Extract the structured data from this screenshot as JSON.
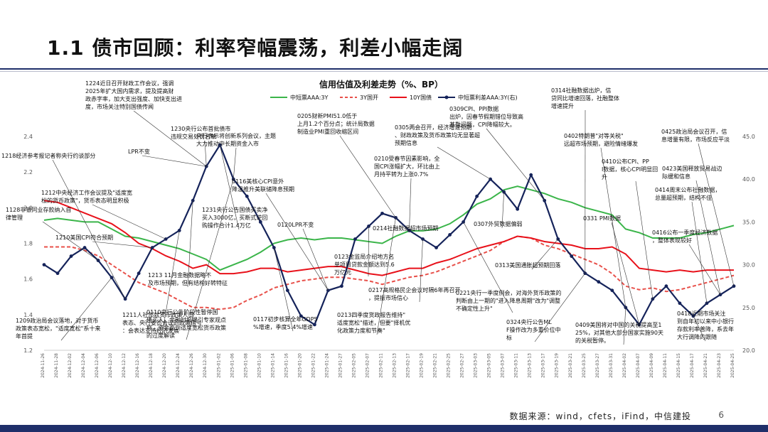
{
  "slide": {
    "title": "1.1 债市回顾：利率窄幅震荡，利差小幅走阔",
    "source": "数据来源：wind，cfets，iFind，中信建投",
    "page": "6"
  },
  "chart_data": {
    "type": "line",
    "title": "信用估值及利差走势（%、BP）",
    "legend_position": "top",
    "grid": false,
    "ylim_left": [
      1.2,
      2.4
    ],
    "ylim_right": [
      20,
      45
    ],
    "left_ticks": [
      "1.2",
      "1.4",
      "1.6",
      "1.8",
      "2.0",
      "2.2",
      "2.4"
    ],
    "right_ticks": [
      "20.0",
      "25.0",
      "30.0",
      "35.0",
      "40.0",
      "45.0"
    ],
    "x": [
      "2024-11-26",
      "2024-11-28",
      "2024-12-02",
      "2024-12-04",
      "2024-12-06",
      "2024-12-10",
      "2024-12-12",
      "2024-12-16",
      "2024-12-18",
      "2024-12-20",
      "2024-12-24",
      "2024-12-26",
      "2024-12-30",
      "2025-01-02",
      "2025-01-06",
      "2025-01-08",
      "2025-01-10",
      "2025-01-14",
      "2025-01-16",
      "2025-01-20",
      "2025-01-22",
      "2025-01-24",
      "2025-01-27",
      "2025-02-05",
      "2025-02-07",
      "2025-02-11",
      "2025-02-13",
      "2025-02-17",
      "2025-02-19",
      "2025-02-21",
      "2025-02-25",
      "2025-02-27",
      "2025-03-03",
      "2025-03-05",
      "2025-03-07",
      "2025-03-11",
      "2025-03-13",
      "2025-03-17",
      "2025-03-19",
      "2025-03-21",
      "2025-03-25",
      "2025-03-27",
      "2025-03-31",
      "2025-04-02",
      "2025-04-07",
      "2025-04-09",
      "2025-04-11",
      "2025-04-15",
      "2025-04-17",
      "2025-04-21",
      "2025-04-23",
      "2025-04-25"
    ],
    "series": [
      {
        "name": "中短票AAA:3Y",
        "axis": "left",
        "color": "#3bb54a",
        "style": "solid",
        "values": [
          1.93,
          1.94,
          1.93,
          1.92,
          1.92,
          1.88,
          1.84,
          1.83,
          1.81,
          1.79,
          1.77,
          1.74,
          1.71,
          1.65,
          1.68,
          1.71,
          1.75,
          1.8,
          1.82,
          1.83,
          1.82,
          1.83,
          1.83,
          1.82,
          1.81,
          1.8,
          1.84,
          1.87,
          1.87,
          1.88,
          1.91,
          1.96,
          2.02,
          2.05,
          2.1,
          2.12,
          2.1,
          2.08,
          2.05,
          2.03,
          2.0,
          1.98,
          1.96,
          1.88,
          1.86,
          1.83,
          1.83,
          1.83,
          1.85,
          1.86,
          1.88,
          1.9
        ]
      },
      {
        "name": "3Y国开",
        "axis": "left",
        "color": "#e8504a",
        "style": "dashed",
        "values": [
          1.78,
          1.78,
          1.78,
          1.76,
          1.73,
          1.68,
          1.63,
          1.58,
          1.55,
          1.52,
          1.48,
          1.44,
          1.44,
          1.43,
          1.44,
          1.48,
          1.51,
          1.55,
          1.57,
          1.59,
          1.6,
          1.61,
          1.61,
          1.6,
          1.59,
          1.57,
          1.59,
          1.61,
          1.62,
          1.64,
          1.67,
          1.7,
          1.73,
          1.76,
          1.81,
          1.84,
          1.83,
          1.79,
          1.77,
          1.74,
          1.71,
          1.68,
          1.63,
          1.56,
          1.54,
          1.55,
          1.53,
          1.54,
          1.56,
          1.58,
          1.6,
          1.62
        ]
      },
      {
        "name": "10Y国债",
        "axis": "left",
        "color": "#e8111a",
        "style": "solid",
        "values": [
          2.04,
          2.03,
          2.0,
          1.97,
          1.94,
          1.91,
          1.86,
          1.8,
          1.77,
          1.73,
          1.7,
          1.66,
          1.68,
          1.63,
          1.63,
          1.64,
          1.66,
          1.66,
          1.64,
          1.65,
          1.66,
          1.67,
          1.67,
          1.65,
          1.63,
          1.62,
          1.64,
          1.66,
          1.66,
          1.69,
          1.71,
          1.74,
          1.77,
          1.79,
          1.81,
          1.84,
          1.83,
          1.81,
          1.8,
          1.79,
          1.77,
          1.77,
          1.78,
          1.74,
          1.66,
          1.65,
          1.64,
          1.65,
          1.64,
          1.65,
          1.65,
          1.65
        ]
      },
      {
        "name": "中短票利差AAA:3Y(右)",
        "axis": "right",
        "color": "#15235a",
        "style": "solid-marker",
        "values": [
          30.0,
          29.0,
          31.0,
          32.0,
          30.5,
          28.5,
          26.0,
          29.0,
          32.0,
          33.0,
          34.0,
          37.5,
          41.5,
          44.0,
          40.0,
          38.0,
          35.0,
          32.0,
          27.0,
          24.0,
          23.0,
          27.0,
          27.5,
          33.0,
          34.5,
          36.0,
          35.5,
          34.0,
          33.0,
          32.0,
          33.5,
          35.0,
          38.0,
          40.0,
          38.5,
          36.5,
          40.5,
          37.5,
          33.0,
          31.0,
          29.0,
          28.0,
          27.0,
          25.0,
          23.0,
          26.0,
          27.5,
          25.5,
          24.0,
          25.5,
          26.5,
          27.5
        ]
      }
    ],
    "right_annotations": [
      "1224近日召开财政工作会议，强调2025年扩大国内需求，提及提高财政赤字率，加大支出强度、加快支出进度，市场关注特别国债传闻",
      "1230央行公布首批债市违规交易处罚名单",
      "0205财新PMI51.0低于上月1.2个百分点；统计局数据制造业PMI重回收缩区间",
      "0309CPI、PPI数据出炉，因春节假期错位导致高基数问题，CPI降幅较大。",
      "0314社融数据出炉，信贷同比增速回落，社融整体增速提升",
      "0402特朗普\"对等关税\"远超市场预期，避险情绪爆发",
      "0425政治局会议召开，信息增量有限，市场反应平淡"
    ],
    "annotations": [
      "1218经济参考报记者称央行约谈部分",
      "LPR不变",
      "央行表示将创新系列会议，主题大力推动中长期资金入市",
      "0305两会召开，经济增速预期、财政政策及货币政策均无显著超预期信息",
      "0116美核心CPI意外降温推升美联储降息预期",
      "0210受春节因素影响，全国CPI涨幅扩大，环比由上月持平转为上涨0.7%",
      "0410公布CPI、PPI数据，核心CPI明显回升",
      "0423美国释放贸易战边际缓和信息",
      "1212中央经济工作会议提及\"适度宽松的货币政策\"，货币表态明显积极",
      "1128非银同业存款纳入自律管理",
      "1231央行公告国债买卖净买入3000亿，买断式逆回购操作合计1.4万亿",
      "0120LPR不变",
      "0214社融数据超市场预期",
      "0307外贸数据偏弱",
      "0331 PMI数据",
      "0414周末公布社融数据，总量超预期，结构不佳",
      "0416公布一季度经济数据，整体表现较好",
      "1210美国CPI符合预期",
      "1213 11月金融数据略不及市场预期，但有结构好转特征",
      "0123金监局介绍地方名单项目贷款金额达到5.6万亿元",
      "0313美国通胀超预期回落",
      "0217高规格民企会议时隔6年再召开，提振市场信心",
      "0221央行一季度例会，对海外货币政策的判断由上一期的\"进入降息周期\"改为\"调整不确定性上升\"",
      "1211人社部就货币政策人员表态、央行委员会议的政策信号：会表达支持经济发展",
      "0110央行公告阶段性暂停国债买入，金融时报援引专家观点称，资金面到适度宽松货币政策的过度解读",
      "0117初步核算全年GDP5%增速，季度5.4%增速",
      "0213四季度货政报告维持\"适度宽松\"描述，但要\"择机优化政策力度和节奏\"",
      "0324央行公告MLF操作改为多重价位中标",
      "0409美国将对中国的关税提高至125%，对其他大部分国家实施90天的关税暂停。",
      "0418近期市场关注到自年初以来中小银行存款利率普降，系去年大行调降的跟随",
      "1209政治局会议落地，对于货币政策表态宽松，\"适度宽松\"系十来年首提"
    ]
  }
}
